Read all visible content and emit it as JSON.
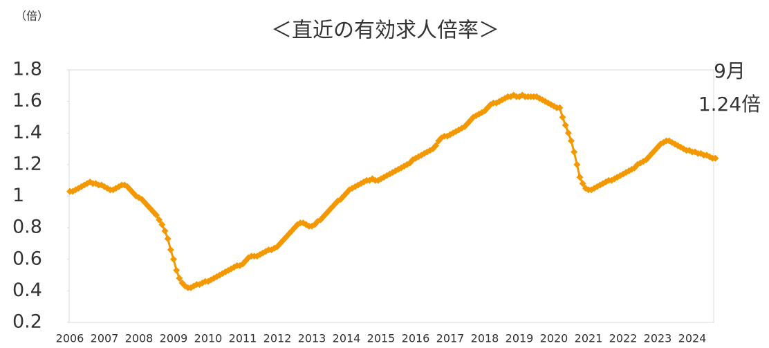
{
  "chart_data": {
    "type": "line",
    "title": "＜直近の有効求人倍率＞",
    "unit_label": "（倍）",
    "annotations": [
      "9月",
      "1.24倍"
    ],
    "categories": [
      "2006",
      null,
      null,
      null,
      null,
      null,
      null,
      null,
      null,
      null,
      null,
      null,
      "2007",
      null,
      null,
      null,
      null,
      null,
      null,
      null,
      null,
      null,
      null,
      null,
      "2008",
      null,
      null,
      null,
      null,
      null,
      null,
      null,
      null,
      null,
      null,
      null,
      "2009",
      null,
      null,
      null,
      null,
      null,
      null,
      null,
      null,
      null,
      null,
      null,
      "2010",
      null,
      null,
      null,
      null,
      null,
      null,
      null,
      null,
      null,
      null,
      null,
      "2011",
      null,
      null,
      null,
      null,
      null,
      null,
      null,
      null,
      null,
      null,
      null,
      "2012",
      null,
      null,
      null,
      null,
      null,
      null,
      null,
      null,
      null,
      null,
      null,
      "2013",
      null,
      null,
      null,
      null,
      null,
      null,
      null,
      null,
      null,
      null,
      null,
      "2014",
      null,
      null,
      null,
      null,
      null,
      null,
      null,
      null,
      null,
      null,
      null,
      "2015",
      null,
      null,
      null,
      null,
      null,
      null,
      null,
      null,
      null,
      null,
      null,
      "2016",
      null,
      null,
      null,
      null,
      null,
      null,
      null,
      null,
      null,
      null,
      null,
      "2017",
      null,
      null,
      null,
      null,
      null,
      null,
      null,
      null,
      null,
      null,
      null,
      "2018",
      null,
      null,
      null,
      null,
      null,
      null,
      null,
      null,
      null,
      null,
      null,
      "2019",
      null,
      null,
      null,
      null,
      null,
      null,
      null,
      null,
      null,
      null,
      null,
      "2020",
      null,
      null,
      null,
      null,
      null,
      null,
      null,
      null,
      null,
      null,
      null,
      "2021",
      null,
      null,
      null,
      null,
      null,
      null,
      null,
      null,
      null,
      null,
      null,
      "2022",
      null,
      null,
      null,
      null,
      null,
      null,
      null,
      null,
      null,
      null,
      null,
      "2023",
      null,
      null,
      null,
      null,
      null,
      null,
      null,
      null,
      null,
      null,
      null,
      "2024",
      null,
      null,
      null,
      null,
      null,
      null,
      null,
      null
    ],
    "series": [
      {
        "color": "#f39800",
        "values": [
          1.03,
          1.03,
          1.04,
          1.05,
          1.06,
          1.07,
          1.08,
          1.09,
          1.08,
          1.08,
          1.07,
          1.07,
          1.06,
          1.05,
          1.04,
          1.04,
          1.05,
          1.06,
          1.07,
          1.07,
          1.06,
          1.04,
          1.02,
          1.0,
          0.99,
          0.98,
          0.96,
          0.94,
          0.92,
          0.9,
          0.88,
          0.85,
          0.82,
          0.78,
          0.73,
          0.66,
          0.6,
          0.53,
          0.48,
          0.45,
          0.43,
          0.42,
          0.42,
          0.43,
          0.44,
          0.44,
          0.45,
          0.46,
          0.46,
          0.47,
          0.48,
          0.49,
          0.5,
          0.51,
          0.52,
          0.53,
          0.54,
          0.55,
          0.56,
          0.56,
          0.57,
          0.59,
          0.61,
          0.62,
          0.62,
          0.62,
          0.63,
          0.64,
          0.65,
          0.66,
          0.66,
          0.67,
          0.68,
          0.7,
          0.72,
          0.74,
          0.76,
          0.78,
          0.8,
          0.82,
          0.83,
          0.83,
          0.82,
          0.81,
          0.81,
          0.82,
          0.84,
          0.85,
          0.87,
          0.89,
          0.91,
          0.93,
          0.95,
          0.97,
          0.98,
          1.0,
          1.02,
          1.04,
          1.05,
          1.06,
          1.07,
          1.08,
          1.09,
          1.1,
          1.1,
          1.11,
          1.1,
          1.1,
          1.11,
          1.12,
          1.13,
          1.14,
          1.15,
          1.16,
          1.17,
          1.18,
          1.19,
          1.2,
          1.21,
          1.23,
          1.24,
          1.25,
          1.26,
          1.27,
          1.28,
          1.29,
          1.3,
          1.32,
          1.35,
          1.37,
          1.38,
          1.38,
          1.39,
          1.4,
          1.41,
          1.42,
          1.43,
          1.44,
          1.46,
          1.48,
          1.5,
          1.51,
          1.52,
          1.53,
          1.54,
          1.56,
          1.58,
          1.59,
          1.59,
          1.6,
          1.61,
          1.62,
          1.63,
          1.63,
          1.64,
          1.63,
          1.63,
          1.64,
          1.63,
          1.63,
          1.63,
          1.63,
          1.63,
          1.62,
          1.61,
          1.6,
          1.59,
          1.58,
          1.57,
          1.56,
          1.56,
          1.5,
          1.45,
          1.4,
          1.35,
          1.28,
          1.2,
          1.12,
          1.08,
          1.05,
          1.04,
          1.04,
          1.05,
          1.06,
          1.07,
          1.08,
          1.09,
          1.1,
          1.1,
          1.11,
          1.12,
          1.13,
          1.14,
          1.15,
          1.16,
          1.17,
          1.18,
          1.2,
          1.21,
          1.22,
          1.23,
          1.25,
          1.27,
          1.29,
          1.31,
          1.33,
          1.34,
          1.35,
          1.35,
          1.34,
          1.33,
          1.32,
          1.31,
          1.3,
          1.29,
          1.29,
          1.28,
          1.28,
          1.27,
          1.27,
          1.26,
          1.26,
          1.25,
          1.24,
          1.24
        ]
      }
    ],
    "ylim": [
      0.2,
      1.8
    ],
    "yticks": [
      1.8,
      1.6,
      1.4,
      1.2,
      1,
      0.8,
      0.6,
      0.4,
      0.2
    ],
    "grid": false
  }
}
